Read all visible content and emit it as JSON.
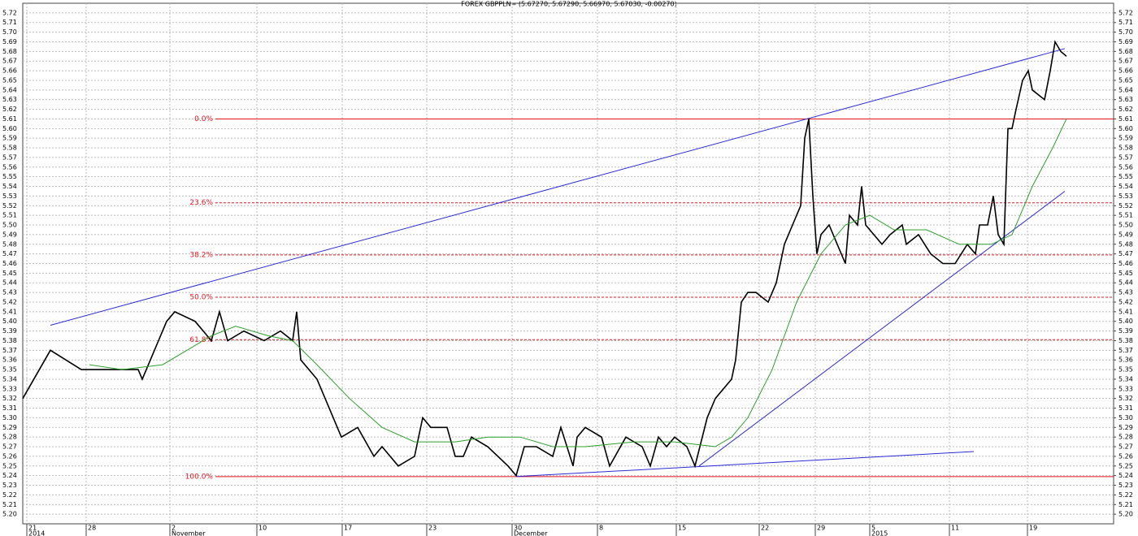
{
  "chart_data": {
    "type": "line",
    "title": "FOREX GBPPLN= (5.67270, 5.67290, 5.66970, 5.67030, -0.00270)",
    "xlim": [
      0,
      134.2
    ],
    "ylim": [
      5.19,
      5.73
    ],
    "grid": true,
    "xticks": [
      {
        "value": 0.5,
        "label": "21"
      },
      {
        "value": 7.8,
        "label": "28"
      },
      {
        "value": 18.1,
        "label": "2"
      },
      {
        "value": 28.8,
        "label": "10"
      },
      {
        "value": 39.3,
        "label": "17"
      },
      {
        "value": 49.7,
        "label": "23"
      },
      {
        "value": 60.2,
        "label": "30"
      },
      {
        "value": 70.7,
        "label": "8"
      },
      {
        "value": 80.4,
        "label": "15"
      },
      {
        "value": 90.6,
        "label": "22"
      },
      {
        "value": 97.5,
        "label": "29"
      },
      {
        "value": 104.2,
        "label": "5"
      },
      {
        "value": 114,
        "label": "11"
      },
      {
        "value": 123.6,
        "label": "19"
      }
    ],
    "xticks_period": [
      {
        "value": 0.5,
        "label": "2014"
      },
      {
        "value": 18.1,
        "label": "November"
      },
      {
        "value": 60.2,
        "label": "December"
      },
      {
        "value": 104.2,
        "label": "2015"
      }
    ],
    "yticks": [
      {
        "value": 5.2,
        "label": "5.20"
      },
      5.21,
      5.22,
      5.23,
      5.24,
      5.25,
      5.26,
      5.27,
      5.28,
      5.29,
      {
        "value": 5.3,
        "label": "5.30"
      },
      5.31,
      5.32,
      5.33,
      5.34,
      5.35,
      5.36,
      5.37,
      5.38,
      5.39,
      {
        "value": 5.4,
        "label": "5.40"
      },
      5.41,
      5.42,
      5.43,
      5.44,
      5.45,
      5.46,
      5.47,
      5.48,
      5.49,
      {
        "value": 5.5,
        "label": "5.50"
      },
      5.51,
      5.52,
      5.53,
      5.54,
      5.55,
      5.56,
      5.57,
      5.58,
      5.59,
      {
        "value": 5.6,
        "label": "5.60"
      },
      5.61,
      5.62,
      5.63,
      5.64,
      5.65,
      5.66,
      5.67,
      5.68,
      5.69,
      {
        "value": 5.7,
        "label": "5.70"
      },
      5.71,
      5.72
    ],
    "series": [
      {
        "color": "#000000",
        "x": [
          0,
          3.4,
          7.2,
          14.2,
          14.7,
          17.7,
          18.7,
          21.2,
          23.2,
          24.2,
          25.2,
          27.2,
          29.7,
          31.7,
          33.2,
          33.7,
          34.2,
          36.2,
          38.2,
          39.2,
          41.2,
          43.2,
          44.2,
          46.2,
          48.2,
          49.2,
          50.2,
          52.2,
          53.2,
          54.2,
          55.2,
          57.2,
          59.7,
          60.7,
          61.7,
          63.2,
          65.2,
          66.2,
          67.7,
          68.2,
          69.2,
          71.2,
          72.2,
          74.2,
          76.2,
          77.2,
          78.2,
          79.2,
          80.2,
          81.7,
          82.7,
          84.2,
          85.2,
          87.2,
          87.7,
          88.4,
          89.2,
          90.2,
          91.7,
          92.7,
          93.7,
          94.7,
          95.7,
          96.2,
          96.7,
          97.2,
          97.7,
          98.2,
          99.2,
          100.2,
          101.2,
          101.7,
          102.7,
          103.2,
          103.7,
          104.7,
          105.7,
          106.7,
          108.2,
          108.7,
          110.2,
          111.7,
          113.2,
          114.7,
          116.2,
          117.2,
          117.7,
          118.7,
          119.4,
          120,
          120.7,
          121.2,
          121.7,
          122.2,
          123,
          123.7,
          124.2,
          125.7,
          126.4,
          127,
          127.7,
          128.4
        ],
        "values": [
          5.32,
          5.37,
          5.35,
          5.35,
          5.34,
          5.4,
          5.41,
          5.4,
          5.38,
          5.41,
          5.38,
          5.39,
          5.38,
          5.39,
          5.38,
          5.41,
          5.36,
          5.34,
          5.3,
          5.28,
          5.29,
          5.26,
          5.27,
          5.25,
          5.26,
          5.3,
          5.29,
          5.29,
          5.26,
          5.26,
          5.28,
          5.27,
          5.25,
          5.24,
          5.27,
          5.27,
          5.26,
          5.29,
          5.25,
          5.28,
          5.29,
          5.28,
          5.25,
          5.28,
          5.27,
          5.25,
          5.28,
          5.27,
          5.28,
          5.27,
          5.25,
          5.3,
          5.32,
          5.34,
          5.36,
          5.42,
          5.43,
          5.43,
          5.42,
          5.44,
          5.48,
          5.5,
          5.52,
          5.59,
          5.61,
          5.53,
          5.47,
          5.49,
          5.5,
          5.48,
          5.46,
          5.51,
          5.5,
          5.54,
          5.5,
          5.49,
          5.48,
          5.49,
          5.5,
          5.48,
          5.49,
          5.47,
          5.46,
          5.46,
          5.48,
          5.47,
          5.5,
          5.5,
          5.53,
          5.49,
          5.48,
          5.6,
          5.6,
          5.62,
          5.65,
          5.66,
          5.64,
          5.63,
          5.66,
          5.69,
          5.68,
          5.675
        ]
      },
      {
        "color": "#2ca02c",
        "x": [
          8.2,
          12.2,
          17.2,
          23.2,
          26.2,
          30.2,
          33.2,
          36.2,
          40.2,
          44.2,
          48.2,
          53.2,
          57.2,
          61.2,
          65.2,
          69.2,
          75.2,
          80.2,
          85.2,
          87.2,
          89.2,
          92.2,
          95.2,
          98.2,
          101.2,
          104.2,
          107.2,
          111.2,
          115.2,
          119.2,
          121.7,
          124.2,
          126.7,
          128.4
        ],
        "values": [
          5.355,
          5.35,
          5.355,
          5.385,
          5.395,
          5.385,
          5.38,
          5.355,
          5.32,
          5.29,
          5.275,
          5.275,
          5.28,
          5.28,
          5.27,
          5.27,
          5.275,
          5.275,
          5.27,
          5.28,
          5.3,
          5.35,
          5.42,
          5.47,
          5.5,
          5.51,
          5.495,
          5.495,
          5.48,
          5.48,
          5.49,
          5.54,
          5.58,
          5.61
        ]
      }
    ],
    "trend_lines": [
      {
        "color": "#2b2bd6",
        "x": [
          3.4,
          128.2
        ],
        "values": [
          5.396,
          5.683
        ]
      },
      {
        "color": "#2b2bd6",
        "x": [
          60.7,
          117
        ],
        "values": [
          5.239,
          5.265
        ]
      },
      {
        "color": "#2b2bd6",
        "x": [
          83.2,
          128.2
        ],
        "values": [
          5.25,
          5.535
        ]
      }
    ],
    "fibonacci": {
      "color": "#e8141e",
      "labels": [
        "0.0%",
        "23.6%",
        "38.2%",
        "50.0%",
        "61.8%",
        "100.0%"
      ],
      "prices": [
        5.61,
        5.523,
        5.469,
        5.425,
        5.381,
        5.239
      ]
    }
  }
}
